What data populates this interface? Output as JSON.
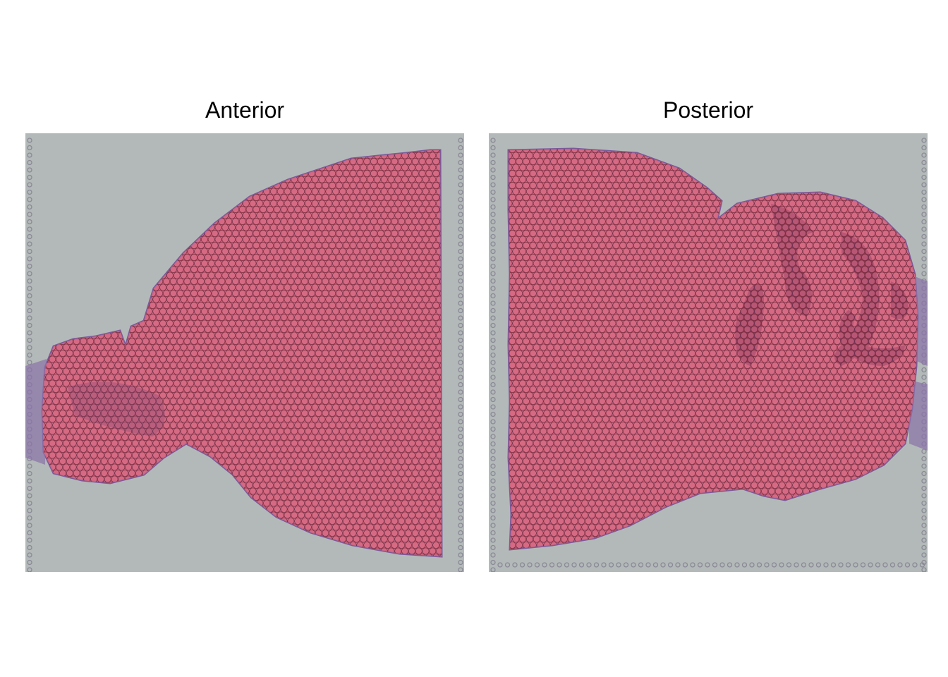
{
  "panels": [
    {
      "title": "Anterior"
    },
    {
      "title": "Posterior"
    }
  ],
  "colors": {
    "background": "#ffffff",
    "slide": "#b3b9b8",
    "tissue": "#a0739a",
    "spot_fill": "#ef6a7c",
    "spot_stroke": "#7a2c3c",
    "dark_region": "#5a2860",
    "fiducial": "#8a8a96"
  }
}
